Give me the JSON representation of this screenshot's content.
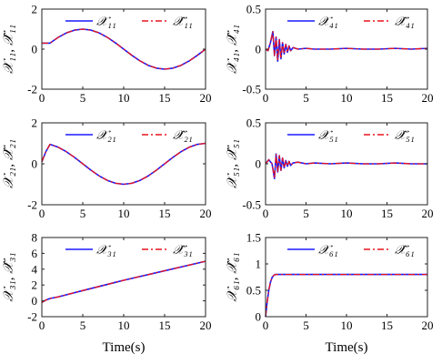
{
  "chart_data": [
    {
      "type": "line",
      "xlabel": "",
      "ylabel": "𝒳₁₁, 𝒳̂₁₁",
      "xlim": [
        0,
        20
      ],
      "ylim": [
        -2,
        2
      ],
      "xticks": [
        0,
        5,
        10,
        15,
        20
      ],
      "yticks": [
        -2,
        0,
        2
      ],
      "legend_loc": "top-right",
      "series": [
        {
          "name": "𝒳₁₁",
          "color": "#1a1aff",
          "style": "solid",
          "x": [
            0,
            1,
            2,
            3,
            4,
            5,
            6,
            7,
            8,
            9,
            10,
            11,
            12,
            13,
            14,
            15,
            16,
            17,
            18,
            19,
            20
          ],
          "y": [
            0.3,
            0.3,
            0.59,
            0.81,
            0.95,
            1.0,
            0.95,
            0.81,
            0.59,
            0.31,
            0.0,
            -0.31,
            -0.59,
            -0.81,
            -0.95,
            -1.0,
            -0.95,
            -0.81,
            -0.59,
            -0.31,
            0.0
          ]
        },
        {
          "name": "𝒳̂₁₁",
          "color": "#e8131d",
          "style": "dashdot",
          "x": [
            0,
            1,
            2,
            3,
            4,
            5,
            6,
            7,
            8,
            9,
            10,
            11,
            12,
            13,
            14,
            15,
            16,
            17,
            18,
            19,
            20
          ],
          "y": [
            0.3,
            0.3,
            0.59,
            0.81,
            0.95,
            1.0,
            0.95,
            0.81,
            0.59,
            0.31,
            0.0,
            -0.31,
            -0.59,
            -0.81,
            -0.95,
            -1.0,
            -0.95,
            -0.81,
            -0.59,
            -0.31,
            0.0
          ]
        }
      ]
    },
    {
      "type": "line",
      "xlabel": "",
      "ylabel": "𝒳₄₁, 𝒳̂₄₁",
      "xlim": [
        0,
        20
      ],
      "ylim": [
        -0.5,
        0.5
      ],
      "xticks": [
        0,
        5,
        10,
        15,
        20
      ],
      "yticks": [
        -0.5,
        0,
        0.5
      ],
      "legend_loc": "top-right",
      "series": [
        {
          "name": "𝒳₄₁",
          "color": "#1a1aff",
          "style": "solid",
          "x": [
            0,
            0.3,
            0.6,
            0.9,
            1.1,
            1.3,
            1.5,
            1.7,
            1.9,
            2.1,
            2.3,
            2.5,
            2.7,
            2.9,
            3.1,
            3.4,
            4,
            5,
            6,
            8,
            10,
            12,
            14,
            16,
            18,
            20
          ],
          "y": [
            0.0,
            -0.02,
            0.08,
            0.22,
            -0.08,
            0.15,
            -0.15,
            0.12,
            -0.12,
            0.08,
            -0.06,
            0.06,
            -0.04,
            0.04,
            -0.02,
            0.02,
            0.0,
            0.01,
            0.0,
            0.0,
            0.01,
            0.0,
            0.0,
            0.01,
            0.0,
            0.01
          ]
        },
        {
          "name": "𝒳̂₄₁",
          "color": "#e8131d",
          "style": "dashdot",
          "x": [
            0,
            0.3,
            0.6,
            0.9,
            1.1,
            1.3,
            1.5,
            1.7,
            1.9,
            2.1,
            2.3,
            2.5,
            2.7,
            2.9,
            3.1,
            3.4,
            4,
            5,
            6,
            8,
            10,
            12,
            14,
            16,
            18,
            20
          ],
          "y": [
            0.0,
            -0.02,
            0.08,
            0.22,
            -0.08,
            0.15,
            -0.15,
            0.12,
            -0.12,
            0.08,
            -0.06,
            0.06,
            -0.04,
            0.04,
            -0.02,
            0.02,
            0.0,
            0.01,
            0.0,
            0.0,
            0.01,
            0.0,
            0.0,
            0.01,
            0.0,
            0.01
          ]
        }
      ]
    },
    {
      "type": "line",
      "xlabel": "",
      "ylabel": "𝒳₂₁, 𝒳̂₂₁",
      "xlim": [
        0,
        20
      ],
      "ylim": [
        -2,
        2
      ],
      "xticks": [
        0,
        5,
        10,
        15,
        20
      ],
      "yticks": [
        -2,
        0,
        2
      ],
      "legend_loc": "top-right",
      "series": [
        {
          "name": "𝒳₂₁",
          "color": "#1a1aff",
          "style": "solid",
          "x": [
            0,
            0.5,
            1,
            2,
            3,
            4,
            5,
            6,
            7,
            8,
            9,
            10,
            11,
            12,
            13,
            14,
            15,
            16,
            17,
            18,
            19,
            20
          ],
          "y": [
            0.1,
            0.6,
            0.95,
            0.81,
            0.59,
            0.31,
            0.0,
            -0.31,
            -0.59,
            -0.81,
            -0.95,
            -1.0,
            -0.95,
            -0.81,
            -0.59,
            -0.31,
            0.0,
            0.31,
            0.59,
            0.81,
            0.95,
            1.0
          ]
        },
        {
          "name": "𝒳̂₂₁",
          "color": "#e8131d",
          "style": "dashdot",
          "x": [
            0,
            0.5,
            1,
            2,
            3,
            4,
            5,
            6,
            7,
            8,
            9,
            10,
            11,
            12,
            13,
            14,
            15,
            16,
            17,
            18,
            19,
            20
          ],
          "y": [
            0.1,
            0.6,
            0.95,
            0.81,
            0.59,
            0.31,
            0.0,
            -0.31,
            -0.59,
            -0.81,
            -0.95,
            -1.0,
            -0.95,
            -0.81,
            -0.59,
            -0.31,
            0.0,
            0.31,
            0.59,
            0.81,
            0.95,
            1.0
          ]
        }
      ]
    },
    {
      "type": "line",
      "xlabel": "",
      "ylabel": "𝒳₅₁, 𝒳̂₅₁",
      "xlim": [
        0,
        20
      ],
      "ylim": [
        -0.5,
        0.5
      ],
      "xticks": [
        0,
        5,
        10,
        15,
        20
      ],
      "yticks": [
        -0.5,
        0,
        0.5
      ],
      "legend_loc": "top-right",
      "series": [
        {
          "name": "𝒳₅₁",
          "color": "#1a1aff",
          "style": "solid",
          "x": [
            0,
            0.4,
            0.8,
            1.1,
            1.3,
            1.5,
            1.7,
            1.9,
            2.1,
            2.3,
            2.5,
            2.7,
            2.9,
            3.1,
            3.4,
            4,
            5,
            6,
            8,
            10,
            12,
            14,
            16,
            18,
            20
          ],
          "y": [
            0.0,
            0.05,
            0.0,
            -0.18,
            0.12,
            -0.1,
            0.1,
            -0.08,
            0.07,
            -0.05,
            0.04,
            -0.03,
            0.03,
            -0.02,
            0.01,
            0.02,
            0.0,
            0.01,
            0.0,
            0.01,
            0.0,
            0.0,
            0.01,
            0.0,
            0.0
          ]
        },
        {
          "name": "𝒳̂₅₁",
          "color": "#e8131d",
          "style": "dashdot",
          "x": [
            0,
            0.4,
            0.8,
            1.1,
            1.3,
            1.5,
            1.7,
            1.9,
            2.1,
            2.3,
            2.5,
            2.7,
            2.9,
            3.1,
            3.4,
            4,
            5,
            6,
            8,
            10,
            12,
            14,
            16,
            18,
            20
          ],
          "y": [
            0.0,
            0.05,
            0.0,
            -0.18,
            0.12,
            -0.1,
            0.1,
            -0.08,
            0.07,
            -0.05,
            0.04,
            -0.03,
            0.03,
            -0.02,
            0.01,
            0.02,
            0.0,
            0.01,
            0.0,
            0.01,
            0.0,
            0.0,
            0.01,
            0.0,
            0.0
          ]
        }
      ]
    },
    {
      "type": "line",
      "xlabel": "Time(s)",
      "ylabel": "𝒳₃₁, 𝒳̂₃₁",
      "xlim": [
        0,
        20
      ],
      "ylim": [
        -2,
        8
      ],
      "xticks": [
        0,
        5,
        10,
        15,
        20
      ],
      "yticks": [
        -2,
        0,
        2,
        4,
        6,
        8
      ],
      "legend_loc": "top-right",
      "series": [
        {
          "name": "𝒳₃₁",
          "color": "#1a1aff",
          "style": "solid",
          "x": [
            0,
            0.5,
            1,
            2,
            5,
            10,
            15,
            20
          ],
          "y": [
            -0.2,
            0.1,
            0.3,
            0.5,
            1.3,
            2.6,
            3.8,
            5.0
          ]
        },
        {
          "name": "𝒳̂₃₁",
          "color": "#e8131d",
          "style": "dashdot",
          "x": [
            0,
            0.5,
            1,
            2,
            5,
            10,
            15,
            20
          ],
          "y": [
            -0.2,
            0.1,
            0.3,
            0.5,
            1.3,
            2.6,
            3.8,
            5.0
          ]
        }
      ]
    },
    {
      "type": "line",
      "xlabel": "Time(s)",
      "ylabel": "𝒳₆₁, 𝒳̂₆₁",
      "xlim": [
        0,
        20
      ],
      "ylim": [
        0,
        1.5
      ],
      "xticks": [
        0,
        5,
        10,
        15,
        20
      ],
      "yticks": [
        0,
        0.5,
        1,
        1.5
      ],
      "legend_loc": "top-right",
      "series": [
        {
          "name": "𝒳₆₁",
          "color": "#1a1aff",
          "style": "solid",
          "x": [
            0,
            0.2,
            0.4,
            0.6,
            0.8,
            1.0,
            1.2,
            1.5,
            20
          ],
          "y": [
            0.0,
            0.28,
            0.5,
            0.65,
            0.74,
            0.78,
            0.8,
            0.8,
            0.8
          ]
        },
        {
          "name": "𝒳̂₆₁",
          "color": "#e8131d",
          "style": "dashdot",
          "x": [
            0,
            0.2,
            0.4,
            0.6,
            0.8,
            1.0,
            1.2,
            1.5,
            20
          ],
          "y": [
            0.0,
            0.28,
            0.5,
            0.65,
            0.74,
            0.78,
            0.8,
            0.8,
            0.8
          ]
        }
      ]
    }
  ]
}
